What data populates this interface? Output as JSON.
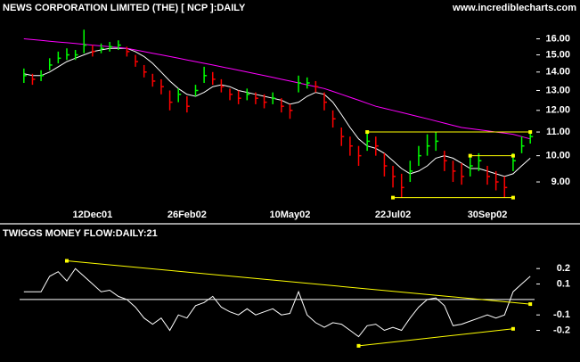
{
  "chart_data": [
    {
      "type": "ohlc",
      "title": "NEWS CORPORATION LIMITED (THE) [ NCP ]:DAILY",
      "source": "www.incrediblecharts.com",
      "log_scale": true,
      "categories": [
        null,
        null,
        null,
        null,
        null,
        null,
        null,
        null,
        "12Dec01",
        null,
        null,
        null,
        null,
        null,
        null,
        null,
        null,
        null,
        null,
        "26Feb02",
        null,
        null,
        null,
        null,
        null,
        null,
        null,
        null,
        null,
        null,
        null,
        "10May02",
        null,
        null,
        null,
        null,
        null,
        null,
        null,
        null,
        null,
        null,
        null,
        "22Jul02",
        null,
        null,
        null,
        null,
        null,
        null,
        null,
        null,
        null,
        null,
        "30Sep02",
        null,
        null,
        null,
        null,
        null
      ],
      "high": [
        14.2,
        13.9,
        14.1,
        14.8,
        15.2,
        15.4,
        15.3,
        16.6,
        15.6,
        15.7,
        15.8,
        15.9,
        15.5,
        15.0,
        14.4,
        13.9,
        13.6,
        13.0,
        13.1,
        12.7,
        13.3,
        14.3,
        14.0,
        13.6,
        13.1,
        13.0,
        13.1,
        12.9,
        12.8,
        12.9,
        12.6,
        12.3,
        13.8,
        13.7,
        13.5,
        12.9,
        12.0,
        11.2,
        10.8,
        10.4,
        11.0,
        10.8,
        10.1,
        9.6,
        9.3,
        9.8,
        10.4,
        10.9,
        11.0,
        10.2,
        9.8,
        9.7,
        10.0,
        10.1,
        9.6,
        9.4,
        9.2,
        10.1,
        10.8,
        11.0
      ],
      "low": [
        13.4,
        13.3,
        13.5,
        14.1,
        14.5,
        14.7,
        14.7,
        15.1,
        14.9,
        15.1,
        15.2,
        15.3,
        14.9,
        14.3,
        13.7,
        13.2,
        12.8,
        12.0,
        12.4,
        11.9,
        12.7,
        13.4,
        13.3,
        12.9,
        12.5,
        12.3,
        12.5,
        12.3,
        12.1,
        12.3,
        11.9,
        11.6,
        12.9,
        13.1,
        12.9,
        12.0,
        11.2,
        10.4,
        10.0,
        9.6,
        10.2,
        10.0,
        9.2,
        8.8,
        8.45,
        9.0,
        9.6,
        10.0,
        10.2,
        9.4,
        9.0,
        8.9,
        9.2,
        9.4,
        8.9,
        8.7,
        8.45,
        9.4,
        10.1,
        10.5
      ],
      "close": [
        13.8,
        13.6,
        13.8,
        14.4,
        14.8,
        15.0,
        15.0,
        15.6,
        15.2,
        15.4,
        15.5,
        15.6,
        15.2,
        14.6,
        14.0,
        13.5,
        13.2,
        12.4,
        12.8,
        12.2,
        13.0,
        13.8,
        13.6,
        13.2,
        12.8,
        12.6,
        12.8,
        12.6,
        12.4,
        12.6,
        12.2,
        12.0,
        13.4,
        13.4,
        13.2,
        12.4,
        11.6,
        10.8,
        10.4,
        10.0,
        10.6,
        10.4,
        9.6,
        9.2,
        8.8,
        9.4,
        10.0,
        10.4,
        10.6,
        9.8,
        9.4,
        9.2,
        9.6,
        9.8,
        9.2,
        9.0,
        8.8,
        9.8,
        10.4,
        10.8
      ],
      "up_color": "#00ff00",
      "down_color": "#ff0000",
      "moving_averages": [
        {
          "color": "#ffffff",
          "values": [
            13.9,
            13.8,
            13.8,
            14.0,
            14.3,
            14.6,
            14.8,
            15.0,
            15.2,
            15.3,
            15.4,
            15.4,
            15.4,
            15.2,
            14.9,
            14.5,
            14.0,
            13.5,
            13.1,
            12.8,
            12.7,
            12.9,
            13.2,
            13.3,
            13.2,
            13.0,
            12.9,
            12.8,
            12.7,
            12.6,
            12.5,
            12.3,
            12.4,
            12.7,
            12.9,
            12.8,
            12.4,
            11.8,
            11.2,
            10.7,
            10.4,
            10.3,
            10.1,
            9.8,
            9.5,
            9.3,
            9.4,
            9.6,
            9.9,
            10.0,
            9.9,
            9.7,
            9.5,
            9.5,
            9.4,
            9.3,
            9.2,
            9.3,
            9.6,
            9.9
          ]
        },
        {
          "color": "#ff00ff",
          "values": [
            16.0,
            15.95,
            15.9,
            15.85,
            15.8,
            15.75,
            15.7,
            15.65,
            15.6,
            15.55,
            15.5,
            15.45,
            15.4,
            15.3,
            15.2,
            15.1,
            15.0,
            14.9,
            14.8,
            14.7,
            14.6,
            14.5,
            14.4,
            14.3,
            14.2,
            14.1,
            14.0,
            13.9,
            13.8,
            13.7,
            13.6,
            13.5,
            13.4,
            13.3,
            13.2,
            13.1,
            12.95,
            12.8,
            12.65,
            12.5,
            12.35,
            12.2,
            12.1,
            12.0,
            11.9,
            11.8,
            11.7,
            11.6,
            11.5,
            11.4,
            11.3,
            11.2,
            11.15,
            11.1,
            11.05,
            11.0,
            10.95,
            10.9,
            10.8,
            10.7
          ]
        }
      ],
      "trendline_color": "#ffff00",
      "trendlines": [
        {
          "x": [
            40,
            59
          ],
          "y": [
            11,
            11
          ]
        },
        {
          "x": [
            43,
            57
          ],
          "y": [
            8.45,
            8.45
          ]
        },
        {
          "x": [
            52,
            57
          ],
          "y": [
            10,
            10
          ]
        }
      ],
      "ylim": [
        8.2,
        17.1
      ],
      "yticks": [
        {
          "value": 16,
          "label": "16.00"
        },
        {
          "value": 15,
          "label": "15.00"
        },
        {
          "value": 14,
          "label": "14.00"
        },
        {
          "value": 13,
          "label": "13.00"
        },
        {
          "value": 12,
          "label": "12.00"
        },
        {
          "value": 11,
          "label": "11.00"
        },
        {
          "value": 10,
          "label": "10.00"
        },
        {
          "value": 9,
          "label": "9.00"
        }
      ]
    },
    {
      "type": "line",
      "title": "TWIGGS MONEY FLOW:DAILY:21",
      "color": "#ffffff",
      "values": [
        0.05,
        0.05,
        0.05,
        0.15,
        0.18,
        0.12,
        0.2,
        0.15,
        0.1,
        0.05,
        0.06,
        0.02,
        0.0,
        -0.05,
        -0.12,
        -0.16,
        -0.12,
        -0.2,
        -0.1,
        -0.12,
        -0.04,
        -0.02,
        0.02,
        -0.05,
        -0.08,
        -0.1,
        -0.06,
        -0.1,
        -0.08,
        -0.06,
        -0.1,
        -0.09,
        0.05,
        -0.1,
        -0.15,
        -0.18,
        -0.15,
        -0.16,
        -0.2,
        -0.24,
        -0.17,
        -0.16,
        -0.2,
        -0.18,
        -0.2,
        -0.12,
        -0.05,
        0.0,
        0.01,
        -0.04,
        -0.17,
        -0.16,
        -0.14,
        -0.12,
        -0.1,
        -0.12,
        -0.1,
        0.05,
        0.1,
        0.15
      ],
      "zero_line": 0,
      "trendline_color": "#ffff00",
      "trendlines": [
        {
          "x": [
            5,
            59
          ],
          "y": [
            0.25,
            -0.03
          ]
        },
        {
          "x": [
            39,
            57
          ],
          "y": [
            -0.3,
            -0.19
          ]
        }
      ],
      "ylim": [
        -0.37,
        0.38
      ],
      "yticks": [
        0.2,
        0.1,
        -0.1,
        -0.2
      ]
    }
  ]
}
